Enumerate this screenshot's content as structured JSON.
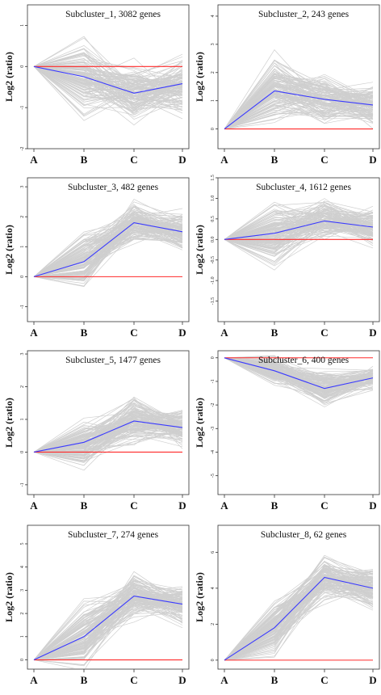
{
  "chart_data": [
    {
      "type": "line",
      "title": "Subcluster_1, 3082 genes",
      "ylabel": "Log2 (ratio)",
      "categories": [
        "A",
        "B",
        "C",
        "D"
      ],
      "ylim": [
        -2,
        1.5
      ],
      "yticks": [
        -2,
        -1,
        0,
        1
      ],
      "mean": [
        0,
        -0.25,
        -0.65,
        -0.42
      ],
      "spread": [
        0,
        0.75,
        0.55,
        0.6
      ],
      "baseline": 0,
      "colors": {
        "genes": "#cfcfcf",
        "mean": "#3a3aff",
        "baseline": "#ff2a2a"
      }
    },
    {
      "type": "line",
      "title": "Subcluster_2, 243 genes",
      "ylabel": "Log2 (ratio)",
      "categories": [
        "A",
        "B",
        "C",
        "D"
      ],
      "ylim": [
        -0.7,
        4.4
      ],
      "yticks": [
        0,
        1,
        2,
        3,
        4
      ],
      "mean": [
        0,
        1.35,
        1.05,
        0.85
      ],
      "spread": [
        0,
        1.0,
        0.7,
        0.6
      ],
      "baseline": 0,
      "colors": {
        "genes": "#cfcfcf",
        "mean": "#3a3aff",
        "baseline": "#ff2a2a"
      }
    },
    {
      "type": "line",
      "title": "Subcluster_3, 482 genes",
      "ylabel": "Log2 (ratio)",
      "categories": [
        "A",
        "B",
        "C",
        "D"
      ],
      "ylim": [
        -1.5,
        3.3
      ],
      "yticks": [
        -1,
        0,
        1,
        2,
        3
      ],
      "mean": [
        0,
        0.5,
        1.8,
        1.5
      ],
      "spread": [
        0,
        0.8,
        0.6,
        0.55
      ],
      "baseline": 0,
      "colors": {
        "genes": "#cfcfcf",
        "mean": "#3a3aff",
        "baseline": "#ff2a2a"
      }
    },
    {
      "type": "line",
      "title": "Subcluster_4, 1612 genes",
      "ylabel": "Log2 (ratio)",
      "categories": [
        "A",
        "B",
        "C",
        "D"
      ],
      "ylim": [
        -2.0,
        1.5
      ],
      "yticks": [
        -1.5,
        -1.0,
        -0.5,
        0.0,
        0.5,
        1.0,
        1.5
      ],
      "mean": [
        0,
        0.15,
        0.45,
        0.3
      ],
      "spread": [
        0,
        0.65,
        0.4,
        0.35
      ],
      "baseline": 0,
      "colors": {
        "genes": "#cfcfcf",
        "mean": "#3a3aff",
        "baseline": "#ff2a2a"
      }
    },
    {
      "type": "line",
      "title": "Subcluster_5, 1477 genes",
      "ylabel": "Log2 (ratio)",
      "categories": [
        "A",
        "B",
        "C",
        "D"
      ],
      "ylim": [
        -1.3,
        3.1
      ],
      "yticks": [
        -1,
        0,
        1,
        2,
        3
      ],
      "mean": [
        0,
        0.3,
        0.95,
        0.75
      ],
      "spread": [
        0,
        0.6,
        0.6,
        0.5
      ],
      "baseline": 0,
      "colors": {
        "genes": "#cfcfcf",
        "mean": "#3a3aff",
        "baseline": "#ff2a2a"
      }
    },
    {
      "type": "line",
      "title": "Subcluster_6, 400 genes",
      "ylabel": "Log2 (ratio)",
      "categories": [
        "A",
        "B",
        "C",
        "D"
      ],
      "ylim": [
        -5.8,
        0.3
      ],
      "yticks": [
        -5,
        -4,
        -3,
        -2,
        -1,
        0
      ],
      "mean": [
        0,
        -0.55,
        -1.3,
        -0.85
      ],
      "spread": [
        0,
        0.5,
        0.6,
        0.4
      ],
      "baseline": 0,
      "colors": {
        "genes": "#cfcfcf",
        "mean": "#3a3aff",
        "baseline": "#ff2a2a"
      }
    },
    {
      "type": "line",
      "title": "Subcluster_7, 274 genes",
      "ylabel": "Log2 (ratio)",
      "categories": [
        "A",
        "B",
        "C",
        "D"
      ],
      "ylim": [
        -0.4,
        5.8
      ],
      "yticks": [
        0,
        1,
        2,
        3,
        4,
        5
      ],
      "mean": [
        0,
        1.0,
        2.75,
        2.4
      ],
      "spread": [
        0,
        1.2,
        0.8,
        0.75
      ],
      "baseline": 0,
      "colors": {
        "genes": "#cfcfcf",
        "mean": "#3a3aff",
        "baseline": "#ff2a2a"
      }
    },
    {
      "type": "line",
      "title": "Subcluster_8, 62 genes",
      "ylabel": "Log2 (ratio)",
      "categories": [
        "A",
        "B",
        "C",
        "D"
      ],
      "ylim": [
        -0.5,
        7.5
      ],
      "yticks": [
        0,
        2,
        4,
        6
      ],
      "mean": [
        0,
        1.8,
        4.6,
        4.0
      ],
      "spread": [
        0,
        1.3,
        1.0,
        1.0
      ],
      "baseline": 0,
      "colors": {
        "genes": "#cfcfcf",
        "mean": "#3a3aff",
        "baseline": "#ff2a2a"
      }
    }
  ]
}
